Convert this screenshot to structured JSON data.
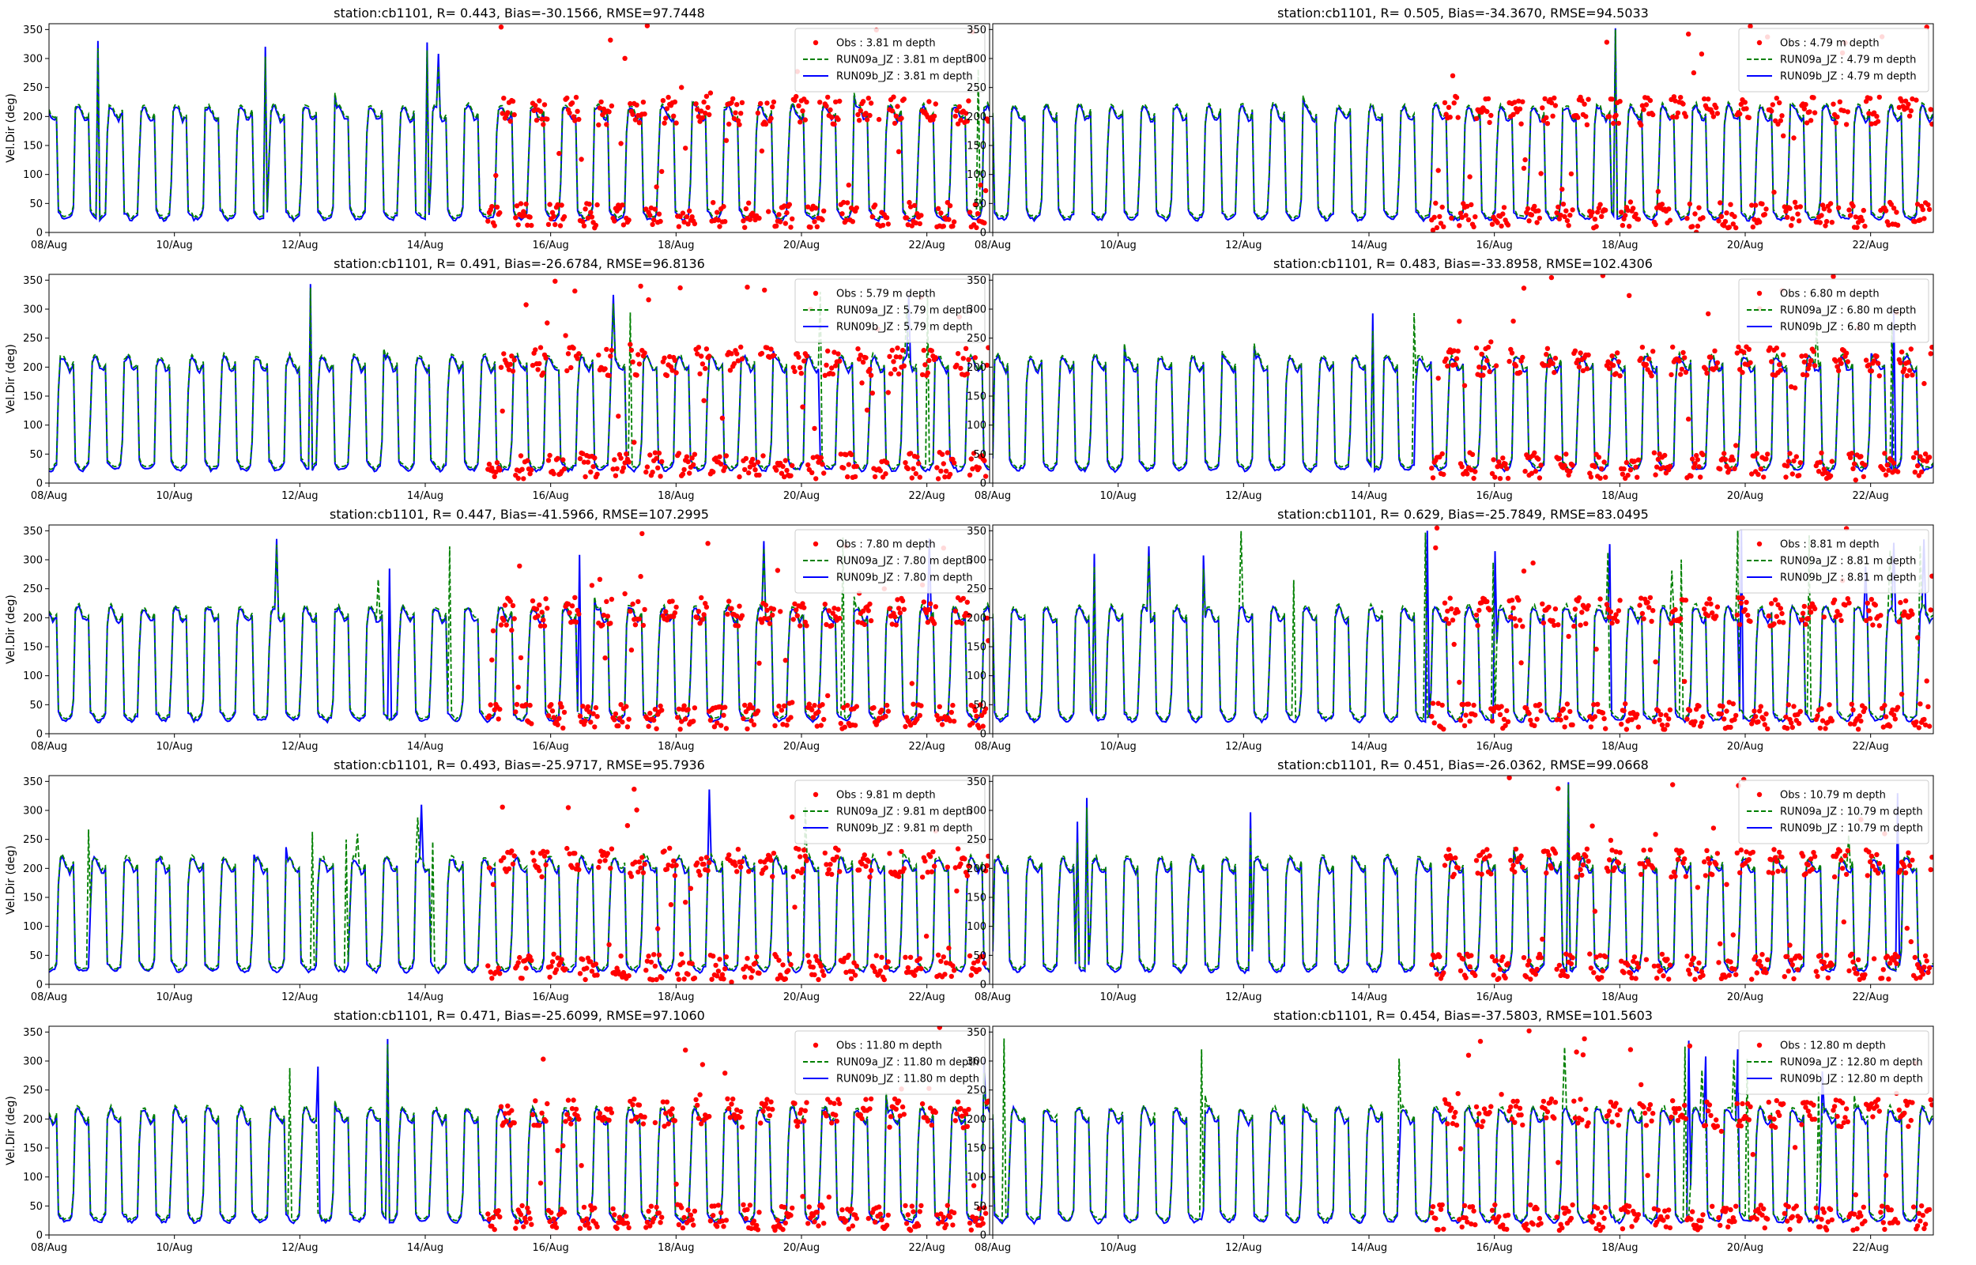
{
  "figure": {
    "ylabel": "Vel.Dir (deg)",
    "x_tick_labels": [
      "08/Aug",
      "10/Aug",
      "12/Aug",
      "14/Aug",
      "16/Aug",
      "18/Aug",
      "20/Aug",
      "22/Aug"
    ],
    "y_tick_labels": [
      "0",
      "50",
      "100",
      "150",
      "200",
      "250",
      "300",
      "350"
    ],
    "colors": {
      "obs": "#ff0000",
      "run09a": "#008000",
      "run09b": "#0000ff",
      "axes": "#000000",
      "legend_border": "#cccccc"
    }
  },
  "chart_data": [
    {
      "type": "line",
      "title": "station:cb1101, R= 0.443, Bias=-30.1566, RMSE=97.7448",
      "depth": "3.81",
      "legend": {
        "obs": "Obs : 3.81 m depth",
        "run09a": "RUN09a_JZ : 3.81 m depth",
        "run09b": "RUN09b_JZ : 3.81 m depth"
      },
      "xlabel": "",
      "ylabel": "Vel.Dir (deg)",
      "xlim_days": [
        8,
        23
      ],
      "ylim": [
        0,
        360
      ],
      "obs_start_day": 15,
      "legend_placement": "upper right"
    },
    {
      "type": "line",
      "title": "station:cb1101, R= 0.505, Bias=-34.3670, RMSE=94.5033",
      "depth": "4.79",
      "legend": {
        "obs": "Obs : 4.79 m depth",
        "run09a": "RUN09a_JZ : 4.79 m depth",
        "run09b": "RUN09b_JZ : 4.79 m depth"
      },
      "xlabel": "",
      "ylabel": "",
      "xlim_days": [
        8,
        23
      ],
      "ylim": [
        0,
        360
      ],
      "obs_start_day": 15,
      "legend_placement": "upper right"
    },
    {
      "type": "line",
      "title": "station:cb1101, R= 0.491, Bias=-26.6784, RMSE=96.8136",
      "depth": "5.79",
      "legend": {
        "obs": "Obs : 5.79 m depth",
        "run09a": "RUN09a_JZ : 5.79 m depth",
        "run09b": "RUN09b_JZ : 5.79 m depth"
      },
      "xlabel": "",
      "ylabel": "Vel.Dir (deg)",
      "xlim_days": [
        8,
        23
      ],
      "ylim": [
        0,
        360
      ],
      "obs_start_day": 15,
      "legend_placement": "upper right"
    },
    {
      "type": "line",
      "title": "station:cb1101, R= 0.483, Bias=-33.8958, RMSE=102.4306",
      "depth": "6.80",
      "legend": {
        "obs": "Obs : 6.80 m depth",
        "run09a": "RUN09a_JZ : 6.80 m depth",
        "run09b": "RUN09b_JZ : 6.80 m depth"
      },
      "xlabel": "",
      "ylabel": "",
      "xlim_days": [
        8,
        23
      ],
      "ylim": [
        0,
        360
      ],
      "obs_start_day": 15,
      "legend_placement": "upper right"
    },
    {
      "type": "line",
      "title": "station:cb1101, R= 0.447, Bias=-41.5966, RMSE=107.2995",
      "depth": "7.80",
      "legend": {
        "obs": "Obs : 7.80 m depth",
        "run09a": "RUN09a_JZ : 7.80 m depth",
        "run09b": "RUN09b_JZ : 7.80 m depth"
      },
      "xlabel": "",
      "ylabel": "Vel.Dir (deg)",
      "xlim_days": [
        8,
        23
      ],
      "ylim": [
        0,
        360
      ],
      "obs_start_day": 15,
      "legend_placement": "upper right"
    },
    {
      "type": "line",
      "title": "station:cb1101, R= 0.629, Bias=-25.7849, RMSE=83.0495",
      "depth": "8.81",
      "legend": {
        "obs": "Obs : 8.81 m depth",
        "run09a": "RUN09a_JZ : 8.81 m depth",
        "run09b": "RUN09b_JZ : 8.81 m depth"
      },
      "xlabel": "",
      "ylabel": "",
      "xlim_days": [
        8,
        23
      ],
      "ylim": [
        0,
        360
      ],
      "obs_start_day": 15,
      "legend_placement": "upper right"
    },
    {
      "type": "line",
      "title": "station:cb1101, R= 0.493, Bias=-25.9717, RMSE=95.7936",
      "depth": "9.81",
      "legend": {
        "obs": "Obs : 9.81 m depth",
        "run09a": "RUN09a_JZ : 9.81 m depth",
        "run09b": "RUN09b_JZ : 9.81 m depth"
      },
      "xlabel": "",
      "ylabel": "Vel.Dir (deg)",
      "xlim_days": [
        8,
        23
      ],
      "ylim": [
        0,
        360
      ],
      "obs_start_day": 15,
      "legend_placement": "upper right"
    },
    {
      "type": "line",
      "title": "station:cb1101, R= 0.451, Bias=-26.0362, RMSE=99.0668",
      "depth": "10.79",
      "legend": {
        "obs": "Obs : 10.79 m depth",
        "run09a": "RUN09a_JZ : 10.79 m depth",
        "run09b": "RUN09b_JZ : 10.79 m depth"
      },
      "xlabel": "",
      "ylabel": "",
      "xlim_days": [
        8,
        23
      ],
      "ylim": [
        0,
        360
      ],
      "obs_start_day": 15,
      "legend_placement": "upper right"
    },
    {
      "type": "line",
      "title": "station:cb1101, R= 0.471, Bias=-25.6099, RMSE=97.1060",
      "depth": "11.80",
      "legend": {
        "obs": "Obs : 11.80 m depth",
        "run09a": "RUN09a_JZ : 11.80 m depth",
        "run09b": "RUN09b_JZ : 11.80 m depth"
      },
      "xlabel": "",
      "ylabel": "Vel.Dir (deg)",
      "xlim_days": [
        8,
        23
      ],
      "ylim": [
        0,
        360
      ],
      "obs_start_day": 15,
      "legend_placement": "upper right"
    },
    {
      "type": "line",
      "title": "station:cb1101, R= 0.454, Bias=-37.5803, RMSE=101.5603",
      "depth": "12.80",
      "legend": {
        "obs": "Obs : 12.80 m depth",
        "run09a": "RUN09a_JZ : 12.80 m depth",
        "run09b": "RUN09b_JZ : 12.80 m depth"
      },
      "xlabel": "",
      "ylabel": "",
      "xlim_days": [
        8,
        23
      ],
      "ylim": [
        0,
        360
      ],
      "obs_start_day": 15,
      "legend_placement": "upper right"
    }
  ]
}
